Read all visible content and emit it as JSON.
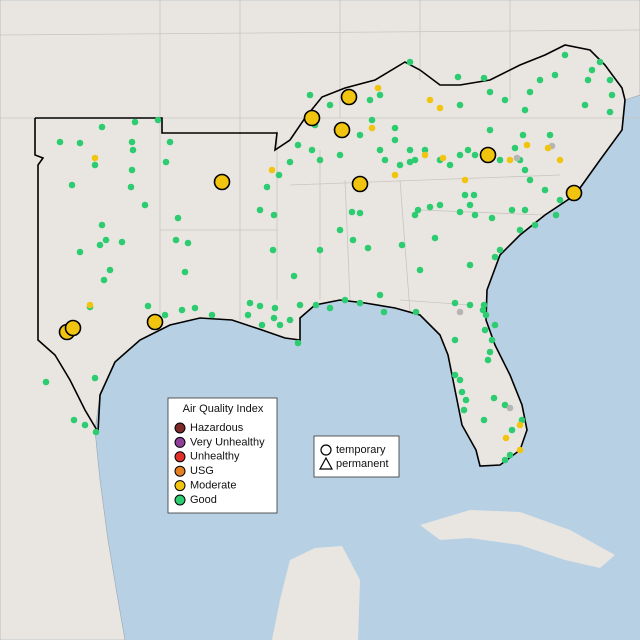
{
  "legend": {
    "title": "Air Quality Index",
    "items": [
      {
        "label": "Hazardous",
        "color": "#7e2a2a"
      },
      {
        "label": "Very Unhealthy",
        "color": "#8f3f97"
      },
      {
        "label": "Unhealthy",
        "color": "#e0302a"
      },
      {
        "label": "USG",
        "color": "#e67e22"
      },
      {
        "label": "Moderate",
        "color": "#f1c40f"
      },
      {
        "label": "Good",
        "color": "#2ecc71"
      }
    ]
  },
  "site_legend": {
    "items": [
      "temporary",
      "permanent"
    ]
  }
}
